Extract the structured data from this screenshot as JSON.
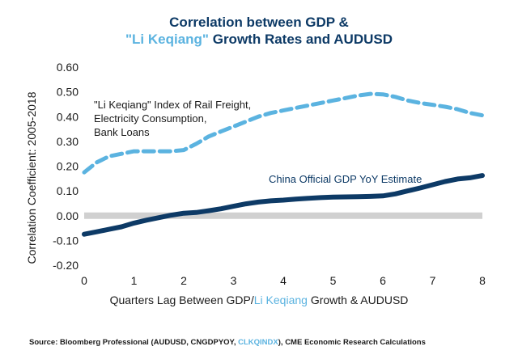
{
  "title_line1": "Correlation between GDP &",
  "title_line2_hl": "\"Li Keqiang\"",
  "title_line2_rest": " Growth Rates and AUDUSD",
  "xlabel_part1": "Quarters Lag Between GDP/",
  "xlabel_hl": "Li Keqiang",
  "xlabel_part2": " Growth & AUDUSD",
  "source_part1": "Source: Bloomberg Professional (AUDUSD, CNGDPYOY, ",
  "source_hl": "CLKQINDX",
  "source_part2": "), CME Economic Research Calculations",
  "colors": {
    "title": "#0d3a66",
    "highlight": "#5bb3e0",
    "gdp": "#0d3a66",
    "lk": "#5bb3e0",
    "zero_band": "#d0d0d0"
  },
  "chart_data": {
    "type": "line",
    "ylabel": "Correlation Coefficient: 2005-2018",
    "xlim": [
      0,
      8
    ],
    "ylim": [
      -0.2,
      0.6
    ],
    "xticks": [
      0,
      1,
      2,
      3,
      4,
      5,
      6,
      7,
      8
    ],
    "yticks": [
      "0.60",
      "0.50",
      "0.40",
      "0.30",
      "0.20",
      "0.10",
      "0.00",
      "-0.10",
      "-0.20"
    ],
    "ytick_values": [
      0.6,
      0.5,
      0.4,
      0.3,
      0.2,
      0.1,
      0.0,
      -0.1,
      -0.2
    ],
    "annotations": {
      "lk_label": [
        "\"Li Keqiang\" Index of Rail Freight,",
        "Electricity Consumption,",
        "Bank Loans"
      ],
      "gdp_label": "China Official GDP YoY Estimate"
    },
    "series": [
      {
        "name": "Li Keqiang Index",
        "style": "dashed",
        "x": [
          0,
          0.25,
          0.5,
          0.75,
          1,
          1.25,
          1.5,
          1.75,
          2,
          2.25,
          2.5,
          2.75,
          3,
          3.25,
          3.5,
          3.75,
          4,
          4.25,
          4.5,
          4.75,
          5,
          5.25,
          5.5,
          5.75,
          6,
          6.25,
          6.5,
          6.75,
          7,
          7.25,
          7.5,
          7.75,
          8
        ],
        "values": [
          0.175,
          0.215,
          0.24,
          0.25,
          0.26,
          0.26,
          0.26,
          0.26,
          0.265,
          0.29,
          0.32,
          0.34,
          0.36,
          0.38,
          0.4,
          0.415,
          0.425,
          0.435,
          0.445,
          0.455,
          0.465,
          0.475,
          0.485,
          0.492,
          0.49,
          0.48,
          0.465,
          0.455,
          0.448,
          0.44,
          0.43,
          0.415,
          0.405
        ]
      },
      {
        "name": "China Official GDP YoY Estimate",
        "style": "solid",
        "x": [
          0,
          0.25,
          0.5,
          0.75,
          1,
          1.25,
          1.5,
          1.75,
          2,
          2.25,
          2.5,
          2.75,
          3,
          3.25,
          3.5,
          3.75,
          4,
          4.25,
          4.5,
          4.75,
          5,
          5.25,
          5.5,
          5.75,
          6,
          6.25,
          6.5,
          6.75,
          7,
          7.25,
          7.5,
          7.75,
          8
        ],
        "values": [
          -0.075,
          -0.065,
          -0.055,
          -0.045,
          -0.03,
          -0.018,
          -0.008,
          0.002,
          0.01,
          0.013,
          0.02,
          0.028,
          0.038,
          0.048,
          0.055,
          0.06,
          0.063,
          0.067,
          0.07,
          0.073,
          0.075,
          0.076,
          0.077,
          0.078,
          0.08,
          0.088,
          0.1,
          0.112,
          0.125,
          0.138,
          0.148,
          0.153,
          0.162
        ]
      }
    ]
  }
}
